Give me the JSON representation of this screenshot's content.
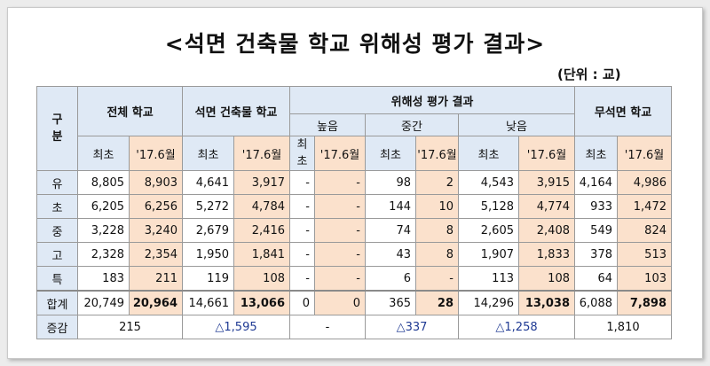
{
  "title": "<석면 건축물 학교 위해성 평가 결과>",
  "unit": "(단위 : 교)",
  "headers": {
    "gubun": "구분",
    "total": "전체 학교",
    "asbestos": "석면 건축물 학교",
    "risk": "위해성 평가 결과",
    "high": "높음",
    "mid": "중간",
    "low": "낮음",
    "nonasb": "무석면 학교",
    "first": "최초",
    "jun17": "'17.6월",
    "first_vertical": "최초"
  },
  "rows": [
    {
      "label": "유",
      "vals": [
        "8,805",
        "8,903",
        "4,641",
        "3,917",
        "-",
        "-",
        "98",
        "2",
        "4,543",
        "3,915",
        "4,164",
        "4,986"
      ]
    },
    {
      "label": "초",
      "vals": [
        "6,205",
        "6,256",
        "5,272",
        "4,784",
        "-",
        "-",
        "144",
        "10",
        "5,128",
        "4,774",
        "933",
        "1,472"
      ]
    },
    {
      "label": "중",
      "vals": [
        "3,228",
        "3,240",
        "2,679",
        "2,416",
        "-",
        "-",
        "74",
        "8",
        "2,605",
        "2,408",
        "549",
        "824"
      ]
    },
    {
      "label": "고",
      "vals": [
        "2,328",
        "2,354",
        "1,950",
        "1,841",
        "-",
        "-",
        "43",
        "8",
        "1,907",
        "1,833",
        "378",
        "513"
      ]
    },
    {
      "label": "특",
      "vals": [
        "183",
        "211",
        "119",
        "108",
        "-",
        "-",
        "6",
        "-",
        "113",
        "108",
        "64",
        "103"
      ]
    },
    {
      "label": "합계",
      "vals": [
        "20,749",
        "20,964",
        "14,661",
        "13,066",
        "0",
        "0",
        "365",
        "28",
        "14,296",
        "13,038",
        "6,088",
        "7,898"
      ]
    }
  ],
  "change": {
    "label": "증감",
    "total": "215",
    "asbestos": "△1,595",
    "high": "-",
    "mid": "△337",
    "low": "△1,258",
    "nonasb": "1,810"
  }
}
